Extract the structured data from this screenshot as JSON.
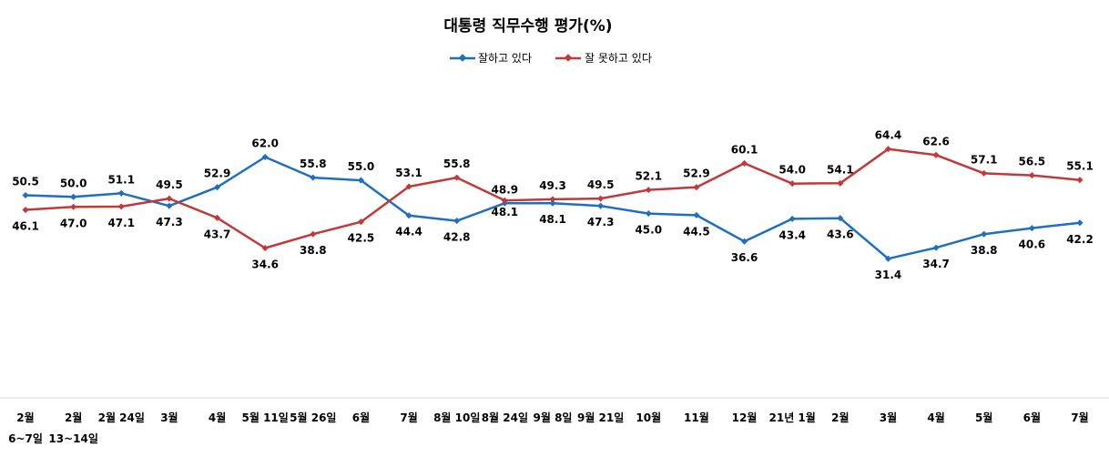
{
  "chart_data": {
    "type": "line",
    "title": "대통령 직무수행 평가(%)",
    "categories": [
      "2월",
      "2월",
      "2월 24일",
      "3월",
      "4월",
      "5월 11일",
      "5월 26일",
      "6월",
      "7월",
      "8월 10일",
      "8월 24일",
      "9월 8일",
      "9월 21일",
      "10월",
      "11월",
      "12월",
      "21년 1월",
      "2월",
      "3월",
      "4월",
      "5월",
      "6월",
      "7월"
    ],
    "category_sublabels": [
      "6~7일",
      "13~14일"
    ],
    "ylim": [
      0,
      100
    ],
    "grid": false,
    "legend_position": "top-center",
    "series": [
      {
        "name": "잘하고 있다",
        "color": "#1f6fbf",
        "values": [
          50.5,
          50.0,
          51.1,
          47.3,
          52.9,
          62.0,
          55.8,
          55.0,
          44.4,
          42.8,
          48.1,
          48.1,
          47.3,
          45.0,
          44.5,
          36.6,
          43.4,
          43.6,
          31.4,
          34.7,
          38.8,
          40.6,
          42.2
        ]
      },
      {
        "name": "잘 못하고 있다",
        "color": "#c0393b",
        "values": [
          46.1,
          47.0,
          47.1,
          49.5,
          43.7,
          34.6,
          38.8,
          42.5,
          53.1,
          55.8,
          48.9,
          49.3,
          49.5,
          52.1,
          52.9,
          60.1,
          54.0,
          54.1,
          64.4,
          62.6,
          57.1,
          56.5,
          55.1
        ]
      }
    ]
  }
}
